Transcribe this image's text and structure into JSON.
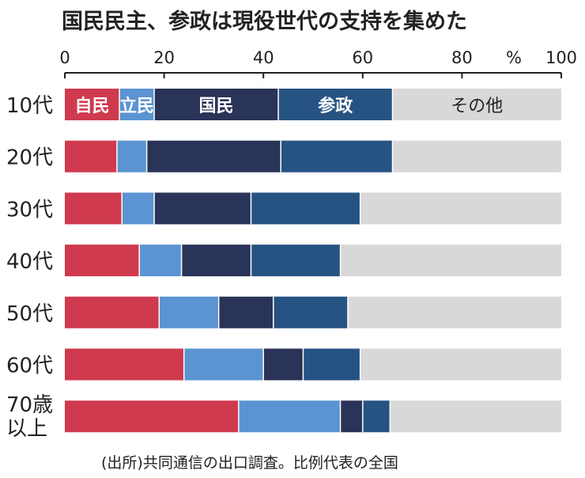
{
  "chart_data": {
    "type": "bar",
    "stacked": true,
    "orientation": "horizontal",
    "title": "国民民主、参政は現役世代の支持を集めた",
    "source_note": "(出所)共同通信の出口調査。比例代表の全国",
    "x_unit": "%",
    "xlim": [
      0,
      100
    ],
    "x_ticks": [
      "0",
      "20",
      "40",
      "60",
      "80",
      "100"
    ],
    "categories": [
      [
        "10代"
      ],
      [
        "20代"
      ],
      [
        "30代"
      ],
      [
        "40代"
      ],
      [
        "50代"
      ],
      [
        "60代"
      ],
      [
        "70歳",
        "以上"
      ]
    ],
    "series": [
      {
        "name": "自民",
        "color": "#cf3a4e",
        "values": [
          11,
          10.5,
          11.5,
          15,
          19,
          24,
          35
        ]
      },
      {
        "name": "立民",
        "color": "#5b94d1",
        "values": [
          7,
          6,
          6.5,
          8.5,
          12,
          16,
          20.5
        ]
      },
      {
        "name": "国民",
        "color": "#2a3358",
        "values": [
          25,
          27,
          19.5,
          14,
          11,
          8,
          4.5
        ]
      },
      {
        "name": "参政",
        "color": "#265382",
        "values": [
          23,
          22.5,
          22,
          18,
          15,
          11.5,
          5.5
        ]
      },
      {
        "name": "その他",
        "color": "#d8d8d8",
        "values": [
          34,
          34,
          40.5,
          44.5,
          43,
          40.5,
          34.5
        ]
      }
    ]
  }
}
